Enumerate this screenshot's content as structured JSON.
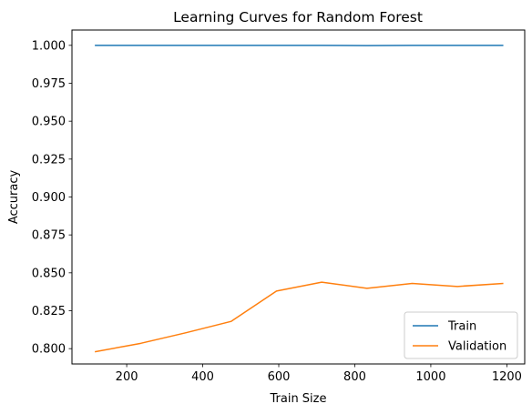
{
  "chart_data": {
    "type": "line",
    "title": "Learning Curves for Random Forest",
    "xlabel": "Train Size",
    "ylabel": "Accuracy",
    "xlim": [
      56,
      1247
    ],
    "ylim": [
      0.7899,
      1.0101
    ],
    "xticks": [
      200,
      400,
      600,
      800,
      1000,
      1200
    ],
    "yticks": [
      0.8,
      0.825,
      0.85,
      0.875,
      0.9,
      0.925,
      0.95,
      0.975,
      1.0
    ],
    "ytick_labels": [
      "0.800",
      "0.825",
      "0.850",
      "0.875",
      "0.900",
      "0.925",
      "0.950",
      "0.975",
      "1.000"
    ],
    "x": [
      118,
      237,
      356,
      475,
      594,
      713,
      832,
      951,
      1070,
      1189
    ],
    "series": [
      {
        "name": "Train",
        "color": "#1f77b4",
        "values": [
          1.0,
          1.0,
          1.0,
          1.0,
          1.0,
          1.0,
          0.9998,
          1.0,
          1.0,
          1.0
        ]
      },
      {
        "name": "Validation",
        "color": "#ff7f0e",
        "values": [
          0.798,
          0.8035,
          0.8105,
          0.818,
          0.838,
          0.8438,
          0.8398,
          0.843,
          0.841,
          0.843
        ]
      }
    ],
    "grid": false,
    "legend_position": "lower right"
  }
}
